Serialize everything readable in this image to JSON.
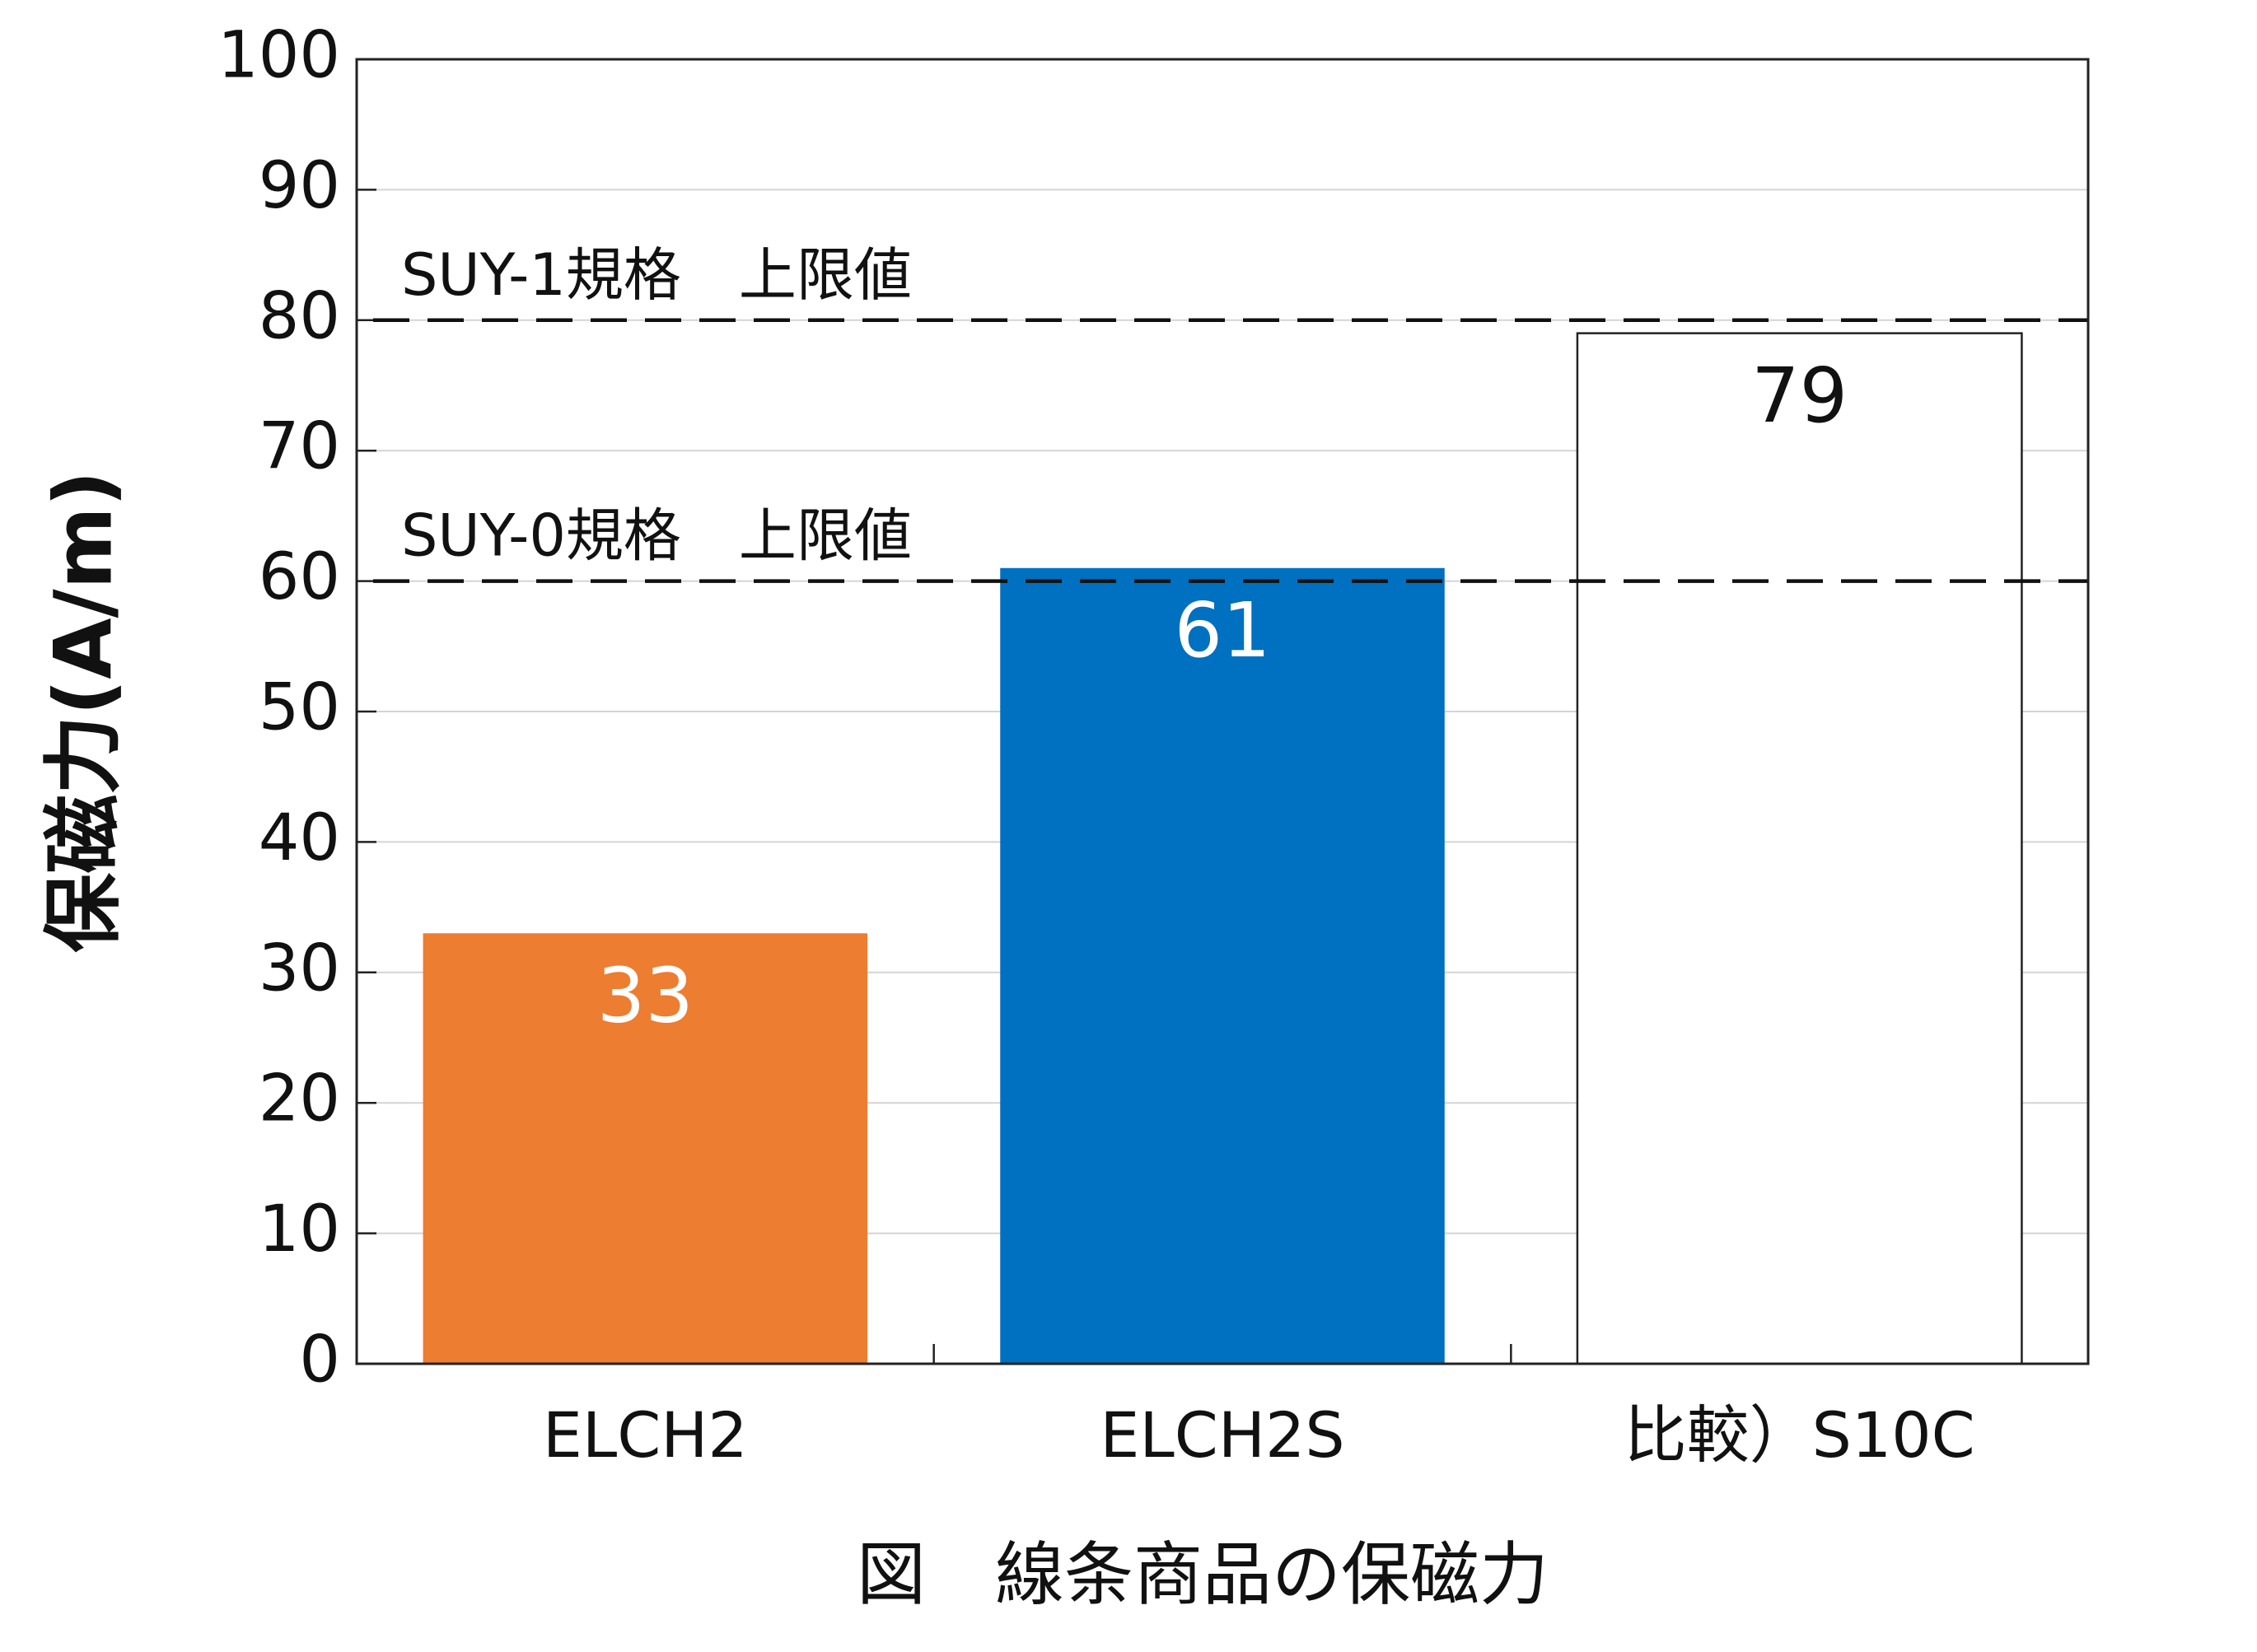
{
  "chart_data": {
    "type": "bar",
    "title": "図　線条商品の保磁力",
    "y_label": "保磁力(A/m)",
    "categories": [
      "ELCH2",
      "ELCH2S",
      "比較）S10C"
    ],
    "values": [
      33,
      61,
      79
    ],
    "colors": [
      "#ED7D31",
      "#0070C0",
      "#FFFFFF"
    ],
    "ylim": [
      0,
      100
    ],
    "yticks": [
      0,
      10,
      20,
      30,
      40,
      50,
      60,
      70,
      80,
      90,
      100
    ],
    "grid": true,
    "reference_lines": [
      {
        "value": 80,
        "label": "SUY-1規格　上限値"
      },
      {
        "value": 60,
        "label": "SUY-0規格　上限値"
      }
    ]
  }
}
